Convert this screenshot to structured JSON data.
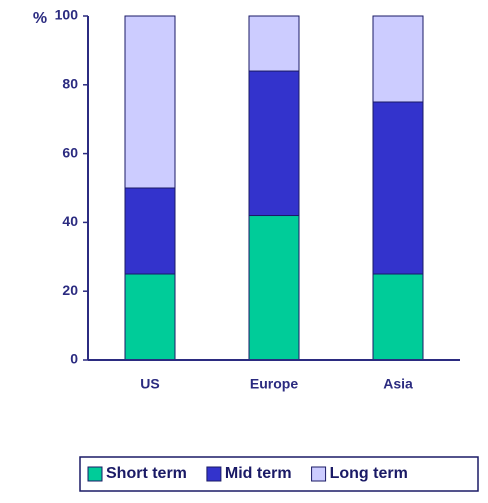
{
  "chart_data": {
    "type": "stacked_bar",
    "ylabel": "%",
    "categories": [
      "US",
      "Europe",
      "Asia"
    ],
    "series": [
      {
        "name": "Short term",
        "color": "#00cc99",
        "values": [
          25,
          42,
          25
        ]
      },
      {
        "name": "Mid term",
        "color": "#3333cc",
        "values": [
          25,
          42,
          50
        ]
      },
      {
        "name": "Long term",
        "color": "#ccccff",
        "values": [
          50,
          16,
          25
        ]
      }
    ],
    "ylim": [
      0,
      100
    ],
    "yticks": [
      0,
      20,
      40,
      60,
      80,
      100
    ],
    "legend": "bottom"
  }
}
